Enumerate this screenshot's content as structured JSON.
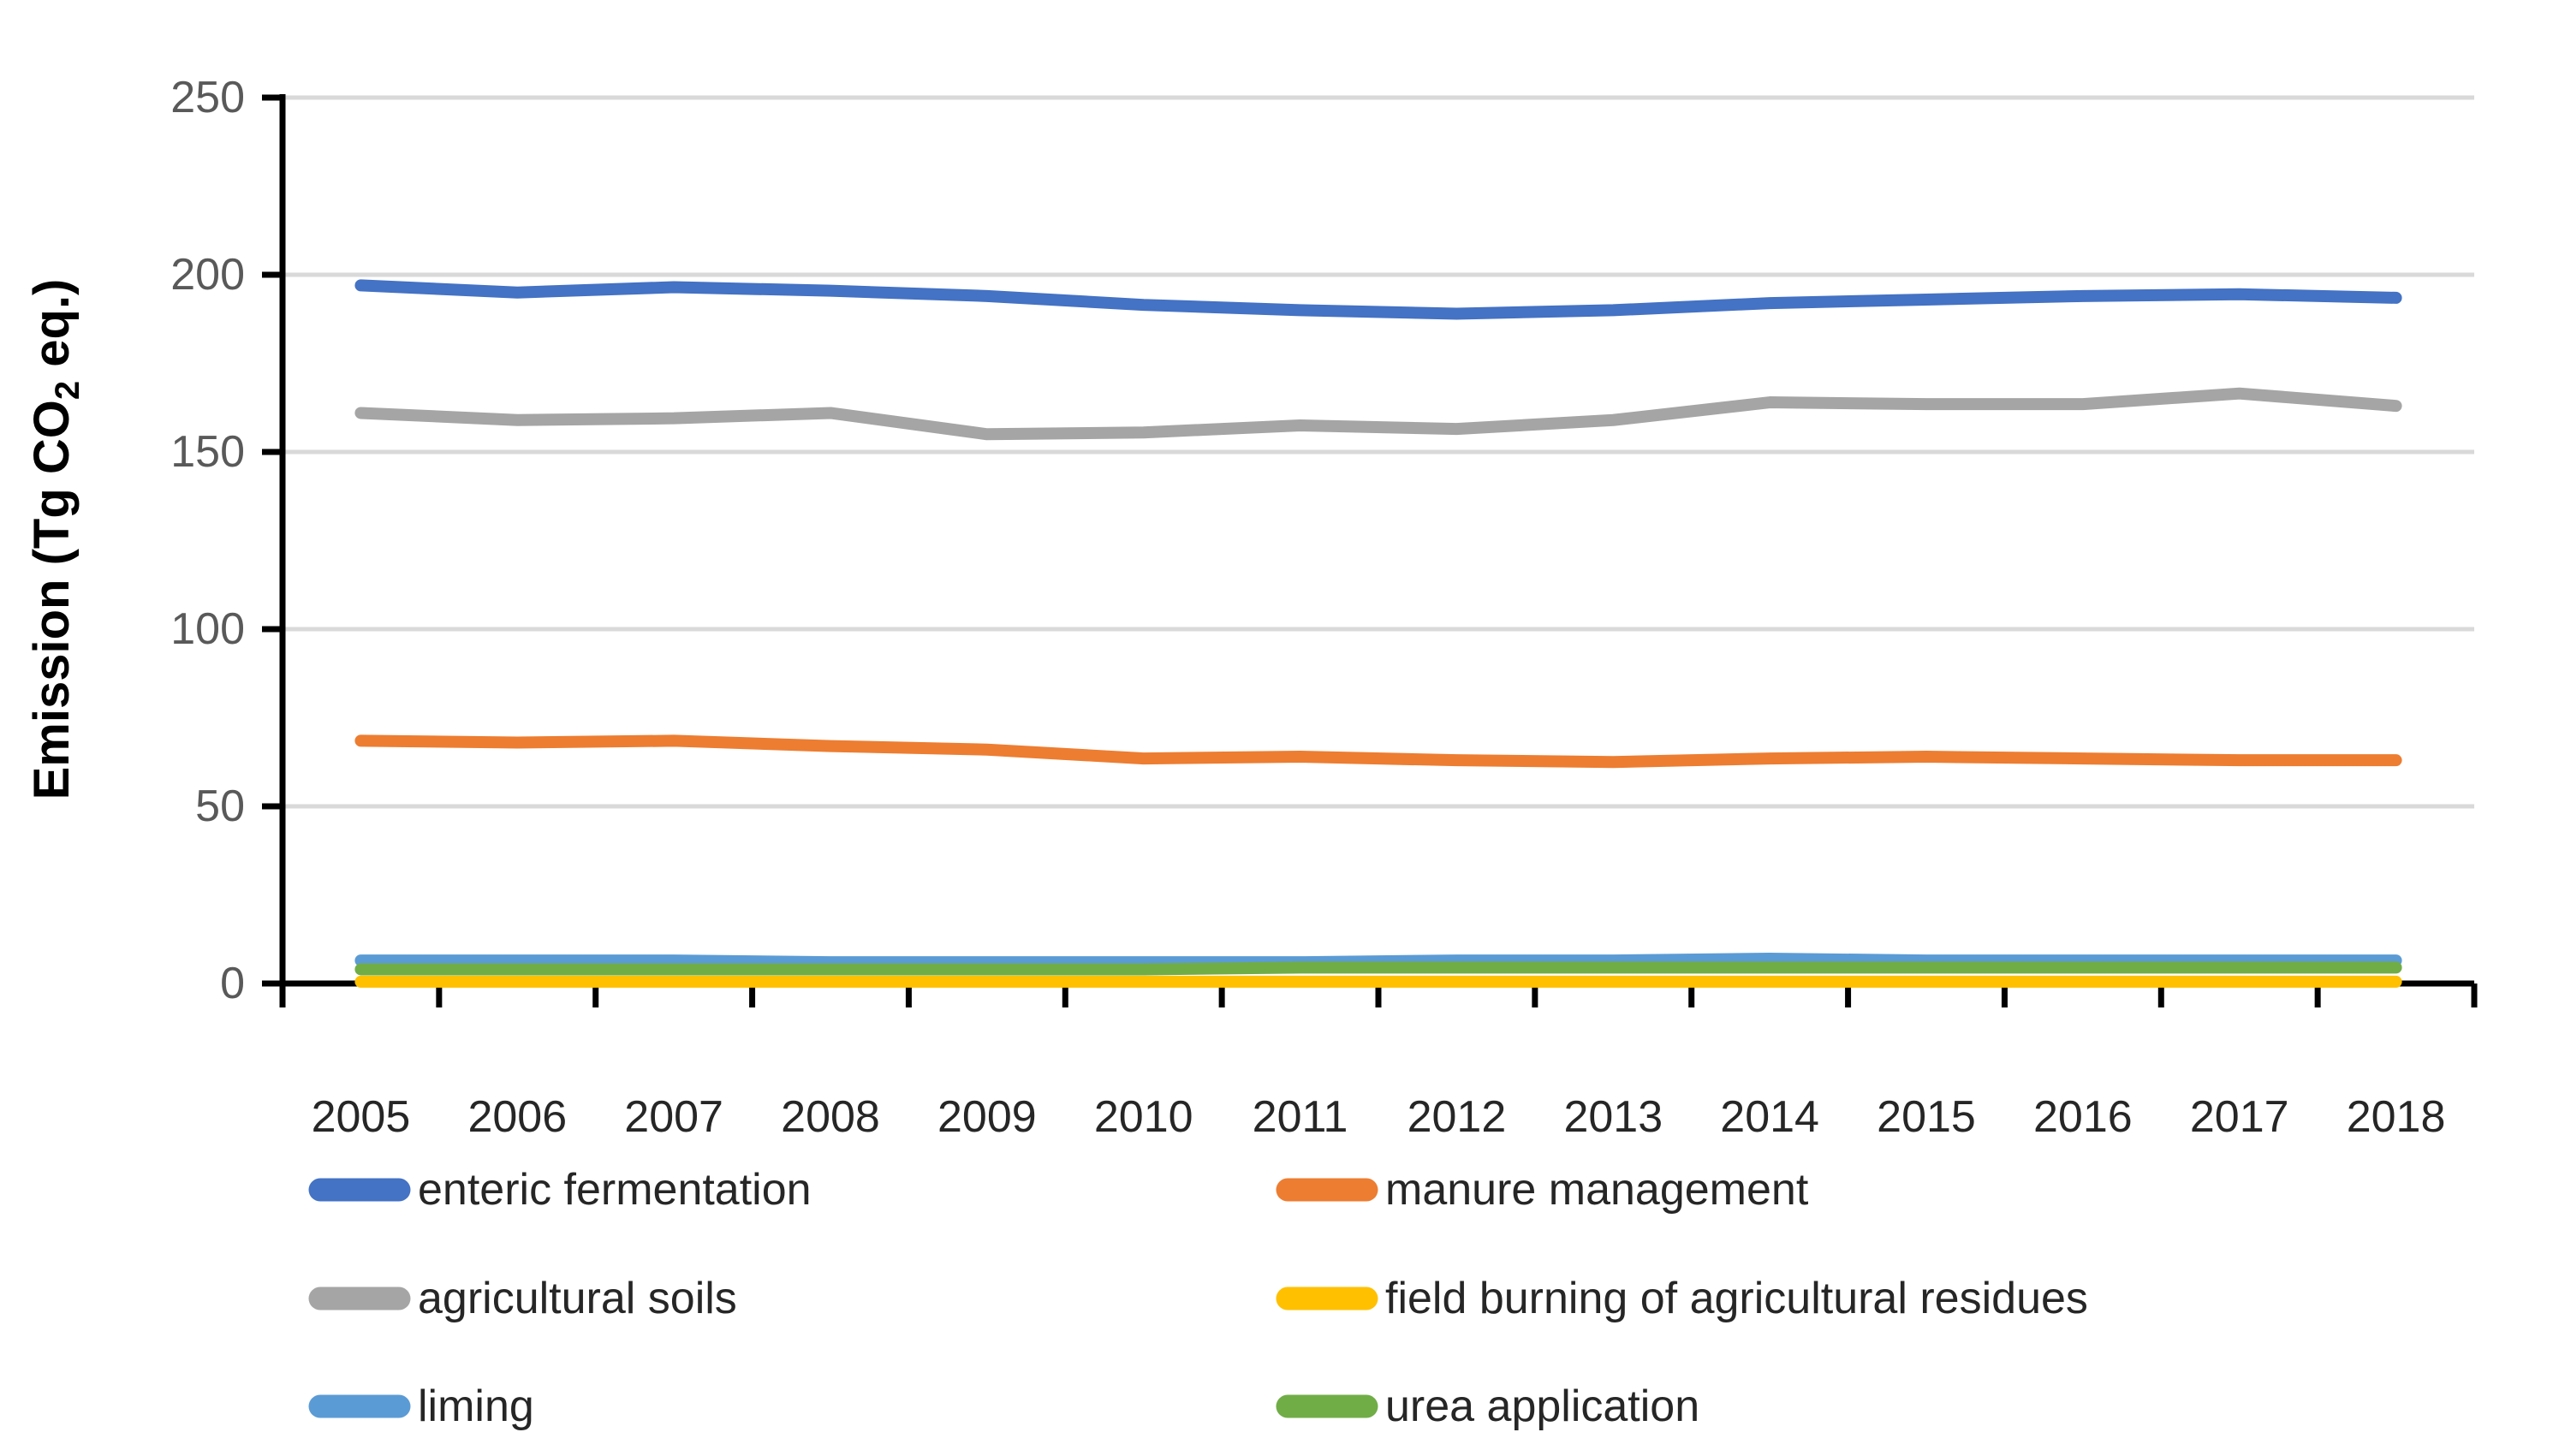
{
  "chart_data": {
    "type": "line",
    "title": "",
    "ylabel": "Emission (Tg CO2 eq.)",
    "ylabel_parts": {
      "prefix": "Emission (Tg CO",
      "subscript": "2",
      "suffix": " eq.)"
    },
    "xlabel": "",
    "x": [
      2005,
      2006,
      2007,
      2008,
      2009,
      2010,
      2011,
      2012,
      2013,
      2014,
      2015,
      2016,
      2017,
      2018
    ],
    "series": [
      {
        "name": "enteric fermentation",
        "color": "#4472C4",
        "values": [
          197,
          195,
          196.5,
          195.5,
          194,
          191.5,
          190,
          189,
          190,
          192,
          193,
          194,
          194.5,
          193.5
        ]
      },
      {
        "name": "manure management",
        "color": "#ED7D31",
        "values": [
          68.5,
          68,
          68.5,
          67,
          66,
          63.5,
          64,
          63,
          62.5,
          63.5,
          64,
          63.5,
          63,
          63
        ]
      },
      {
        "name": "agricultural soils",
        "color": "#A5A5A5",
        "values": [
          161,
          159,
          159.5,
          161,
          155,
          155.5,
          157.5,
          156.5,
          159,
          164,
          163.5,
          163.5,
          166.5,
          163
        ]
      },
      {
        "name": "field burning of agricultural residues",
        "color": "#FFC000",
        "values": [
          0.5,
          0.5,
          0.5,
          0.5,
          0.5,
          0.5,
          0.5,
          0.5,
          0.5,
          0.5,
          0.5,
          0.5,
          0.5,
          0.5
        ]
      },
      {
        "name": "liming",
        "color": "#5B9BD5",
        "values": [
          6.5,
          6.5,
          6.5,
          6,
          6,
          6,
          6,
          6.5,
          6.5,
          7,
          6.5,
          6.5,
          6.5,
          6.5
        ]
      },
      {
        "name": "urea application",
        "color": "#70AD47",
        "values": [
          4,
          4,
          4,
          4,
          4,
          4,
          4.5,
          4.5,
          4.5,
          4.5,
          4.5,
          4.5,
          4.5,
          4.5
        ]
      }
    ],
    "ylim": [
      0,
      250
    ],
    "yticks": [
      0,
      50,
      100,
      150,
      200,
      250
    ],
    "grid": true,
    "legend_position": "bottom",
    "legend_rows": [
      [
        "enteric fermentation",
        "manure management"
      ],
      [
        "agricultural soils",
        "field burning of agricultural residues"
      ],
      [
        "liming",
        "urea application"
      ]
    ],
    "colors": {
      "axis": "#000000",
      "gridline": "#D9D9D9",
      "y_tick_label": "#595959",
      "x_tick_label": "#262626",
      "legend_text": "#262626",
      "y_axis_title": "#000000",
      "background": "#FFFFFF"
    }
  }
}
